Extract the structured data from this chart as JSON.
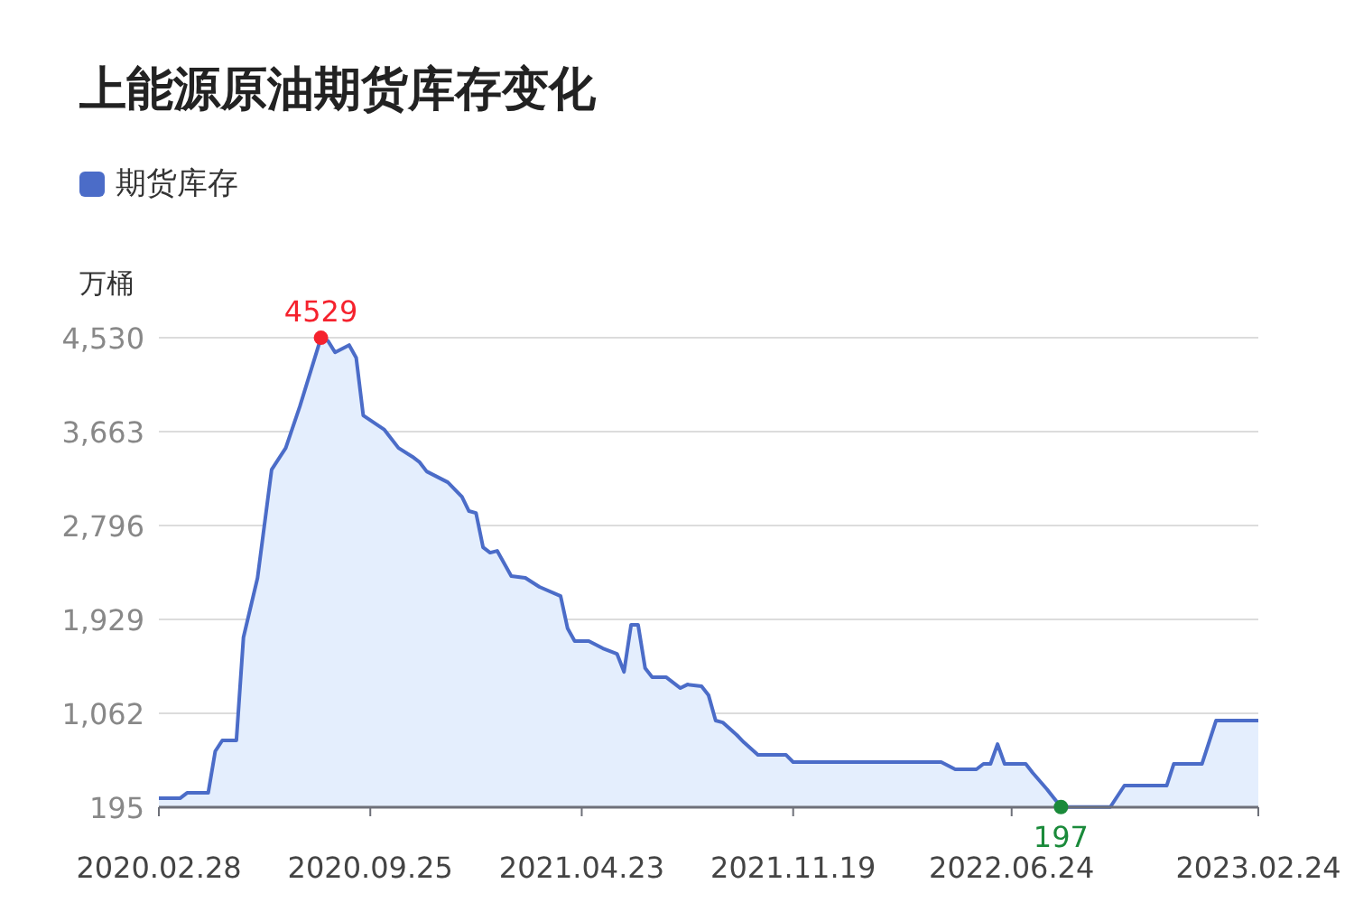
{
  "chart_data": {
    "type": "area",
    "title": "上能源原油期货库存变化",
    "ylabel": "万桶",
    "legend": "top left",
    "grid": "y",
    "x": [
      "2020-02-28",
      "2020-03-20",
      "2020-03-27",
      "2020-04-17",
      "2020-04-24",
      "2020-05-01",
      "2020-05-15",
      "2020-05-22",
      "2020-06-05",
      "2020-06-19",
      "2020-07-03",
      "2020-07-17",
      "2020-08-07",
      "2020-08-14",
      "2020-08-21",
      "2020-09-04",
      "2020-09-11",
      "2020-09-18",
      "2020-10-09",
      "2020-10-23",
      "2020-11-06",
      "2020-11-13",
      "2020-11-20",
      "2020-11-27",
      "2020-12-11",
      "2020-12-25",
      "2021-01-01",
      "2021-01-08",
      "2021-01-15",
      "2021-01-22",
      "2021-01-29",
      "2021-02-12",
      "2021-02-26",
      "2021-03-12",
      "2021-04-02",
      "2021-04-09",
      "2021-04-16",
      "2021-04-30",
      "2021-05-14",
      "2021-05-28",
      "2021-06-04",
      "2021-06-11",
      "2021-06-18",
      "2021-06-25",
      "2021-07-02",
      "2021-07-16",
      "2021-07-30",
      "2021-08-06",
      "2021-08-20",
      "2021-08-27",
      "2021-09-03",
      "2021-09-10",
      "2021-09-24",
      "2021-10-01",
      "2021-10-15",
      "2021-11-12",
      "2021-11-19",
      "2022-04-15",
      "2022-04-29",
      "2022-05-20",
      "2022-05-27",
      "2022-06-03",
      "2022-06-10",
      "2022-06-17",
      "2022-07-08",
      "2022-07-15",
      "2022-07-29",
      "2022-08-12",
      "2022-09-30",
      "2022-10-14",
      "2022-11-25",
      "2022-12-02",
      "2022-12-30",
      "2023-01-13",
      "2023-02-24"
    ],
    "series": [
      {
        "name": "期货库存",
        "color": "#4b6cc8",
        "values": [
          278,
          278,
          328,
          328,
          712,
          812,
          812,
          1762,
          2312,
          3312,
          3512,
          3895,
          4529,
          4500,
          4395,
          4462,
          4345,
          3812,
          3680,
          3512,
          3430,
          3380,
          3295,
          3262,
          3195,
          3062,
          2929,
          2912,
          2595,
          2545,
          2562,
          2329,
          2312,
          2229,
          2145,
          1845,
          1729,
          1729,
          1662,
          1612,
          1445,
          1878,
          1878,
          1478,
          1395,
          1395,
          1295,
          1328,
          1312,
          1228,
          995,
          978,
          862,
          795,
          678,
          678,
          612,
          612,
          545,
          545,
          595,
          595,
          778,
          595,
          595,
          512,
          362,
          197,
          197,
          395,
          395,
          595,
          595,
          995,
          995
        ]
      }
    ],
    "xlim": [
      "2020-02-28",
      "2023-02-24"
    ],
    "xticks": [
      {
        "value": "2020-02-28",
        "label": "2020.02.28"
      },
      {
        "value": "2020-09-25",
        "label": "2020.09.25"
      },
      {
        "value": "2021-04-23",
        "label": "2021.04.23"
      },
      {
        "value": "2021-11-19",
        "label": "2021.11.19"
      },
      {
        "value": "2022-06-24",
        "label": "2022.06.24"
      },
      {
        "value": "2023-02-24",
        "label": "2023.02.24"
      }
    ],
    "ylim": [
      195,
      4530
    ],
    "yticks": [
      195,
      {
        "value": 1062,
        "label": "1,062"
      },
      {
        "value": 1929,
        "label": "1,929"
      },
      {
        "value": 2796,
        "label": "2,796"
      },
      {
        "value": 3663,
        "label": "3,663"
      },
      {
        "value": 4530,
        "label": "4,530"
      }
    ],
    "annotations": [
      {
        "text": "4529",
        "x": "2020-08-07",
        "y": 4529
      },
      {
        "text": "197",
        "x": "2022-08-12",
        "y": 197
      }
    ]
  }
}
